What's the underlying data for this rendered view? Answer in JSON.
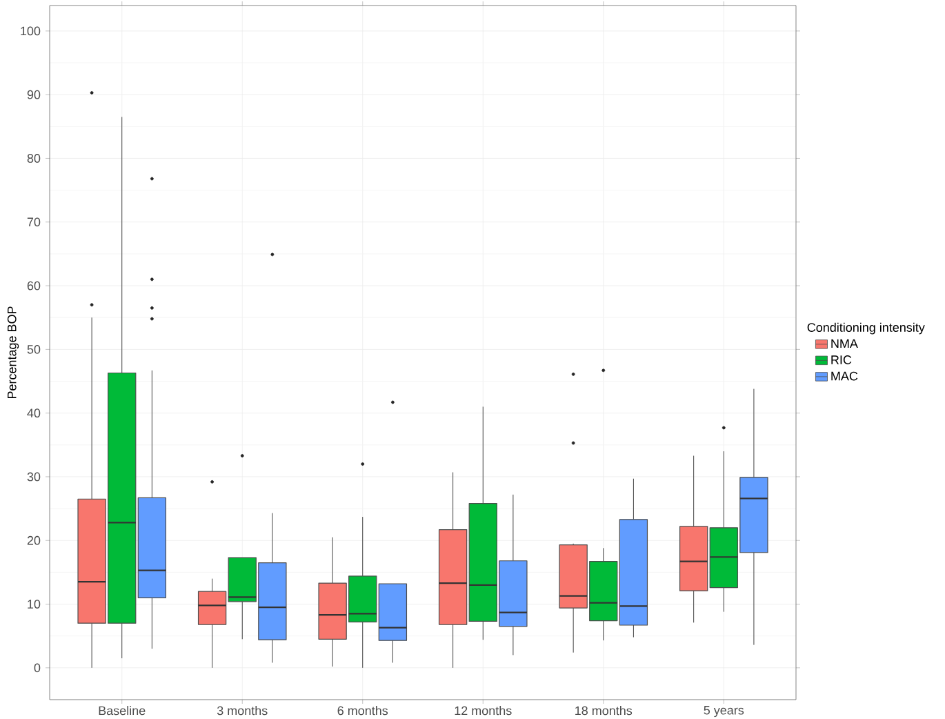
{
  "chart_data": {
    "type": "box",
    "ylabel": "Percentage BOP",
    "legend_title": "Conditioning intensity",
    "categories": [
      "Baseline",
      "3 months",
      "6 months",
      "12 months",
      "18 months",
      "5 years"
    ],
    "ylim": [
      -5,
      104
    ],
    "yticks": [
      0,
      10,
      20,
      30,
      40,
      50,
      60,
      70,
      80,
      90,
      100
    ],
    "grid": true,
    "legend": "right",
    "series": [
      {
        "name": "NMA",
        "color": "#f8766d",
        "boxes": [
          {
            "low": 0,
            "q1": 7,
            "median": 13.5,
            "q3": 26.5,
            "high": 55,
            "outliers": [
              57,
              90.3
            ]
          },
          {
            "low": 0,
            "q1": 6.8,
            "median": 9.8,
            "q3": 12,
            "high": 14,
            "outliers": [
              29.2
            ]
          },
          {
            "low": 0.2,
            "q1": 4.5,
            "median": 8.3,
            "q3": 13.3,
            "high": 20.5
          },
          {
            "low": 0,
            "q1": 6.8,
            "median": 13.3,
            "q3": 21.7,
            "high": 30.7
          },
          {
            "low": 2.4,
            "q1": 9.4,
            "median": 11.3,
            "q3": 19.3,
            "high": 19.5,
            "outliers": [
              35.3,
              46.1
            ]
          },
          {
            "low": 7.1,
            "q1": 12.1,
            "median": 16.7,
            "q3": 22.2,
            "high": 33.3
          }
        ]
      },
      {
        "name": "RIC",
        "color": "#00ba38",
        "boxes": [
          {
            "low": 1.5,
            "q1": 7,
            "median": 22.8,
            "q3": 46.3,
            "high": 86.5
          },
          {
            "low": 4.5,
            "q1": 10.4,
            "median": 11.1,
            "q3": 17.3,
            "high": 17.3,
            "outliers": [
              33.3
            ]
          },
          {
            "low": 0,
            "q1": 7.2,
            "median": 8.5,
            "q3": 14.4,
            "high": 23.7,
            "outliers": [
              32
            ]
          },
          {
            "low": 4.4,
            "q1": 7.3,
            "median": 13,
            "q3": 25.8,
            "high": 41
          },
          {
            "low": 4.3,
            "q1": 7.4,
            "median": 10.2,
            "q3": 16.7,
            "high": 18.8,
            "outliers": [
              46.7
            ]
          },
          {
            "low": 8.8,
            "q1": 12.6,
            "median": 17.4,
            "q3": 22,
            "high": 34,
            "outliers": [
              37.7
            ]
          }
        ]
      },
      {
        "name": "MAC",
        "color": "#619cff",
        "boxes": [
          {
            "low": 3,
            "q1": 11,
            "median": 15.3,
            "q3": 26.7,
            "high": 46.7,
            "outliers": [
              54.8,
              56.5,
              61,
              76.8
            ]
          },
          {
            "low": 0.8,
            "q1": 4.4,
            "median": 9.5,
            "q3": 16.5,
            "high": 24.3,
            "outliers": [
              64.9
            ]
          },
          {
            "low": 0.8,
            "q1": 4.3,
            "median": 6.3,
            "q3": 13.2,
            "high": 13.2,
            "outliers": [
              41.7
            ]
          },
          {
            "low": 2,
            "q1": 6.5,
            "median": 8.7,
            "q3": 16.8,
            "high": 27.2
          },
          {
            "low": 4.8,
            "q1": 6.7,
            "median": 9.7,
            "q3": 23.3,
            "high": 29.7
          },
          {
            "low": 3.6,
            "q1": 18.1,
            "median": 26.6,
            "q3": 29.9,
            "high": 43.8
          }
        ]
      }
    ]
  }
}
